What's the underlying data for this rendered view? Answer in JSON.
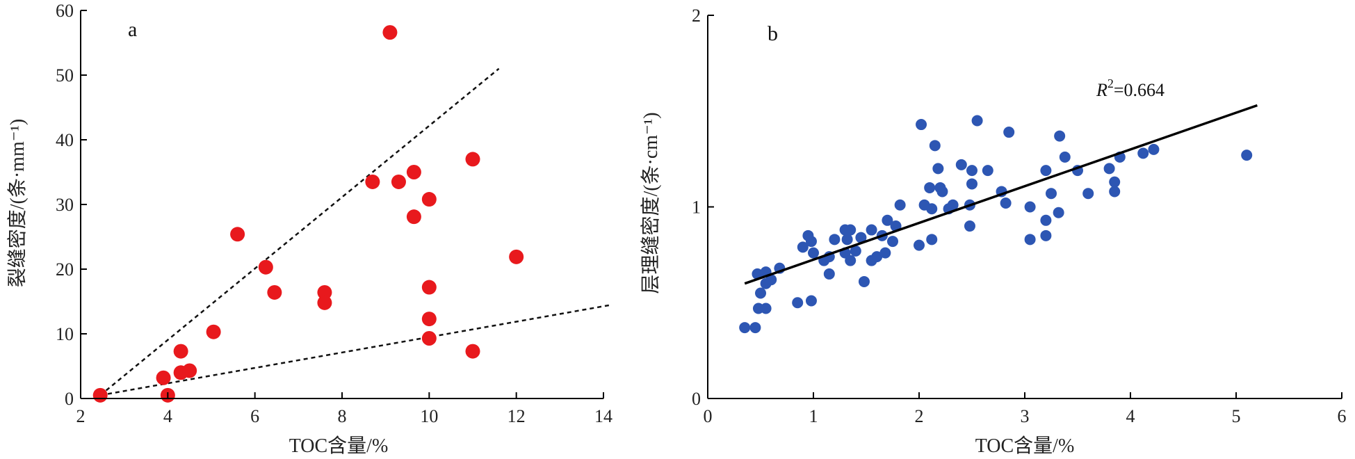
{
  "chart_data": [
    {
      "type": "scatter",
      "panel_label": "a",
      "xlabel": "TOC含量/%",
      "ylabel": "裂缝密度/(条·mm⁻¹)",
      "xlim": [
        2,
        14
      ],
      "ylim": [
        0,
        60
      ],
      "xticks": [
        "2",
        "4",
        "6",
        "8",
        "10",
        "12",
        "14"
      ],
      "yticks": [
        "0",
        "10",
        "20",
        "30",
        "40",
        "50",
        "60"
      ],
      "point_color": "#e8191d",
      "points": [
        {
          "x": 2.45,
          "y": 0.5
        },
        {
          "x": 4.0,
          "y": 0.5
        },
        {
          "x": 3.9,
          "y": 3.2
        },
        {
          "x": 4.3,
          "y": 4.0
        },
        {
          "x": 4.5,
          "y": 4.3
        },
        {
          "x": 4.3,
          "y": 7.3
        },
        {
          "x": 5.05,
          "y": 10.3
        },
        {
          "x": 5.6,
          "y": 25.4
        },
        {
          "x": 6.25,
          "y": 20.3
        },
        {
          "x": 6.45,
          "y": 16.4
        },
        {
          "x": 7.6,
          "y": 16.4
        },
        {
          "x": 7.6,
          "y": 14.8
        },
        {
          "x": 8.7,
          "y": 33.5
        },
        {
          "x": 9.1,
          "y": 56.6
        },
        {
          "x": 9.3,
          "y": 33.5
        },
        {
          "x": 9.65,
          "y": 35.0
        },
        {
          "x": 9.65,
          "y": 28.1
        },
        {
          "x": 10.0,
          "y": 30.8
        },
        {
          "x": 10.0,
          "y": 17.2
        },
        {
          "x": 10.0,
          "y": 12.3
        },
        {
          "x": 10.0,
          "y": 9.3
        },
        {
          "x": 11.0,
          "y": 37.0
        },
        {
          "x": 11.0,
          "y": 7.3
        },
        {
          "x": 12.0,
          "y": 21.9
        }
      ],
      "guide_lines": [
        {
          "x1": 2.45,
          "y1": 0.5,
          "x2": 11.6,
          "y2": 51.0
        },
        {
          "x1": 2.45,
          "y1": 0.5,
          "x2": 14.2,
          "y2": 14.5
        }
      ]
    },
    {
      "type": "scatter",
      "panel_label": "b",
      "xlabel": "TOC含量/%",
      "ylabel": "层理缝密度/(条·cm⁻¹)",
      "xlim": [
        0,
        6
      ],
      "ylim": [
        0,
        2
      ],
      "xticks": [
        "0",
        "1",
        "2",
        "3",
        "4",
        "5",
        "6"
      ],
      "yticks": [
        "0",
        "1",
        "2"
      ],
      "point_color": "#2d56b3",
      "annotation": {
        "r_label": "R",
        "sup": "2",
        "value": "=0.664"
      },
      "fit_line": {
        "x1": 0.35,
        "y1": 0.6,
        "x2": 5.2,
        "y2": 1.53
      },
      "points": [
        {
          "x": 0.35,
          "y": 0.37
        },
        {
          "x": 0.45,
          "y": 0.37
        },
        {
          "x": 0.48,
          "y": 0.47
        },
        {
          "x": 0.55,
          "y": 0.47
        },
        {
          "x": 0.5,
          "y": 0.55
        },
        {
          "x": 0.55,
          "y": 0.6
        },
        {
          "x": 0.6,
          "y": 0.62
        },
        {
          "x": 0.47,
          "y": 0.65
        },
        {
          "x": 0.55,
          "y": 0.66
        },
        {
          "x": 0.68,
          "y": 0.68
        },
        {
          "x": 0.85,
          "y": 0.5
        },
        {
          "x": 0.98,
          "y": 0.51
        },
        {
          "x": 0.9,
          "y": 0.79
        },
        {
          "x": 0.95,
          "y": 0.85
        },
        {
          "x": 0.98,
          "y": 0.82
        },
        {
          "x": 1.0,
          "y": 0.76
        },
        {
          "x": 1.1,
          "y": 0.72
        },
        {
          "x": 1.15,
          "y": 0.74
        },
        {
          "x": 1.15,
          "y": 0.65
        },
        {
          "x": 1.2,
          "y": 0.83
        },
        {
          "x": 1.3,
          "y": 0.76
        },
        {
          "x": 1.3,
          "y": 0.88
        },
        {
          "x": 1.35,
          "y": 0.88
        },
        {
          "x": 1.32,
          "y": 0.83
        },
        {
          "x": 1.35,
          "y": 0.72
        },
        {
          "x": 1.4,
          "y": 0.77
        },
        {
          "x": 1.45,
          "y": 0.84
        },
        {
          "x": 1.48,
          "y": 0.61
        },
        {
          "x": 1.55,
          "y": 0.88
        },
        {
          "x": 1.55,
          "y": 0.72
        },
        {
          "x": 1.6,
          "y": 0.74
        },
        {
          "x": 1.65,
          "y": 0.85
        },
        {
          "x": 1.68,
          "y": 0.76
        },
        {
          "x": 1.7,
          "y": 0.93
        },
        {
          "x": 1.75,
          "y": 0.82
        },
        {
          "x": 1.78,
          "y": 0.9
        },
        {
          "x": 1.82,
          "y": 1.01
        },
        {
          "x": 2.0,
          "y": 0.8
        },
        {
          "x": 2.02,
          "y": 1.43
        },
        {
          "x": 2.05,
          "y": 1.01
        },
        {
          "x": 2.1,
          "y": 1.1
        },
        {
          "x": 2.12,
          "y": 0.99
        },
        {
          "x": 2.12,
          "y": 0.83
        },
        {
          "x": 2.15,
          "y": 1.32
        },
        {
          "x": 2.18,
          "y": 1.2
        },
        {
          "x": 2.2,
          "y": 1.1
        },
        {
          "x": 2.22,
          "y": 1.08
        },
        {
          "x": 2.28,
          "y": 0.99
        },
        {
          "x": 2.32,
          "y": 1.01
        },
        {
          "x": 2.4,
          "y": 1.22
        },
        {
          "x": 2.48,
          "y": 1.01
        },
        {
          "x": 2.48,
          "y": 0.9
        },
        {
          "x": 2.5,
          "y": 1.19
        },
        {
          "x": 2.5,
          "y": 1.12
        },
        {
          "x": 2.55,
          "y": 1.45
        },
        {
          "x": 2.65,
          "y": 1.19
        },
        {
          "x": 2.78,
          "y": 1.08
        },
        {
          "x": 2.82,
          "y": 1.02
        },
        {
          "x": 2.85,
          "y": 1.39
        },
        {
          "x": 3.05,
          "y": 1.0
        },
        {
          "x": 3.05,
          "y": 0.83
        },
        {
          "x": 3.2,
          "y": 0.85
        },
        {
          "x": 3.2,
          "y": 0.93
        },
        {
          "x": 3.2,
          "y": 1.19
        },
        {
          "x": 3.25,
          "y": 1.07
        },
        {
          "x": 3.32,
          "y": 0.97
        },
        {
          "x": 3.33,
          "y": 1.37
        },
        {
          "x": 3.38,
          "y": 1.26
        },
        {
          "x": 3.5,
          "y": 1.19
        },
        {
          "x": 3.6,
          "y": 1.07
        },
        {
          "x": 3.8,
          "y": 1.2
        },
        {
          "x": 3.85,
          "y": 1.13
        },
        {
          "x": 3.85,
          "y": 1.08
        },
        {
          "x": 3.9,
          "y": 1.26
        },
        {
          "x": 4.12,
          "y": 1.28
        },
        {
          "x": 4.22,
          "y": 1.3
        },
        {
          "x": 5.1,
          "y": 1.27
        }
      ]
    }
  ]
}
